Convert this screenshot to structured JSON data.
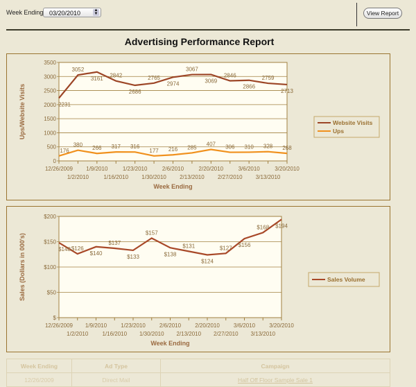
{
  "toolbar": {
    "week_label": "Week Ending",
    "week_value": "03/20/2010",
    "view_button": "View Report"
  },
  "report_title": "Advertising Performance Report",
  "colors": {
    "visits": "#9c4526",
    "ups": "#f0901c",
    "sales": "#a84828",
    "axis": "#a08040",
    "label": "#9a6a40"
  },
  "chart_data": [
    {
      "type": "line",
      "ylabel": "Ups/Website Visits",
      "xlabel": "Week Ending",
      "ylim": [
        0,
        3500
      ],
      "yticks": [
        0,
        500,
        1000,
        1500,
        2000,
        2500,
        3000,
        3500
      ],
      "grid": true,
      "legend": "right",
      "categories": [
        "12/26/2009",
        "1/2/2010",
        "1/9/2010",
        "1/16/2010",
        "1/23/2010",
        "1/30/2010",
        "2/6/2010",
        "2/13/2010",
        "2/20/2010",
        "2/27/2010",
        "3/6/2010",
        "3/13/2010",
        "3/20/2010"
      ],
      "series": [
        {
          "name": "Website Visits",
          "values": [
            2231,
            3052,
            3161,
            2842,
            2686,
            2765,
            2974,
            3067,
            3069,
            2846,
            2866,
            2759,
            2713
          ]
        },
        {
          "name": "Ups",
          "values": [
            176,
            380,
            266,
            317,
            316,
            177,
            216,
            285,
            407,
            306,
            310,
            328,
            268
          ]
        }
      ]
    },
    {
      "type": "line",
      "ylabel": "Sales (Dollars in 000's)",
      "xlabel": "Week Ending",
      "ylim": [
        0,
        200
      ],
      "yticks": [
        "$",
        "$50",
        "$100",
        "$150",
        "$200"
      ],
      "grid": true,
      "legend": "right",
      "categories": [
        "12/26/2009",
        "1/2/2010",
        "1/9/2010",
        "1/16/2010",
        "1/23/2010",
        "1/30/2010",
        "2/6/2010",
        "2/13/2010",
        "2/20/2010",
        "2/27/2010",
        "3/6/2010",
        "3/13/2010",
        "3/20/2010"
      ],
      "series": [
        {
          "name": "Sales Volume",
          "values": [
            148,
            126,
            140,
            137,
            133,
            157,
            138,
            131,
            124,
            127,
            156,
            168,
            194
          ]
        }
      ]
    }
  ],
  "table": {
    "headers": [
      "Week Ending",
      "Ad Type",
      "Campaign"
    ],
    "rows": [
      [
        "12/26/2009",
        "Direct Mail",
        "Half Off Floor Sample Sale 1"
      ]
    ]
  }
}
